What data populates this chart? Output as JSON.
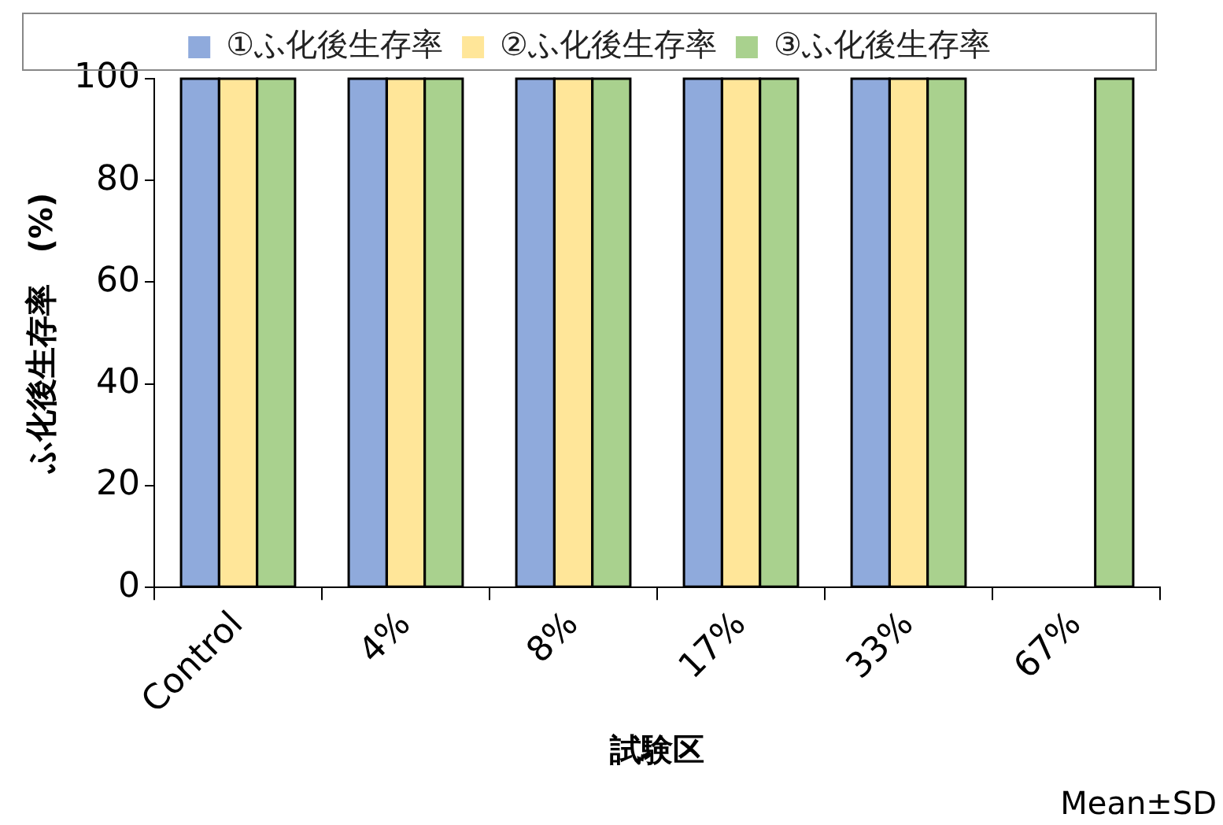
{
  "chart_data": {
    "type": "bar",
    "xlabel": "試験区",
    "ylabel": "ふ化後生存率　(%)",
    "annotations": [
      "Mean±SD"
    ],
    "categories": [
      "Control",
      "4%",
      "8%",
      "17%",
      "33%",
      "67%"
    ],
    "series": [
      {
        "name": "①ふ化後生存率",
        "color": "#8faadc",
        "values": [
          100,
          100,
          100,
          100,
          100,
          0
        ]
      },
      {
        "name": "②ふ化後生存率",
        "color": "#ffe699",
        "values": [
          100,
          100,
          100,
          100,
          100,
          0
        ]
      },
      {
        "name": "③ふ化後生存率",
        "color": "#a9d18e",
        "values": [
          100,
          100,
          100,
          100,
          100,
          100
        ]
      }
    ],
    "ylim": [
      0,
      100
    ],
    "yticks": [
      0,
      20,
      40,
      60,
      80,
      100
    ],
    "grid": false,
    "legend": "top"
  }
}
